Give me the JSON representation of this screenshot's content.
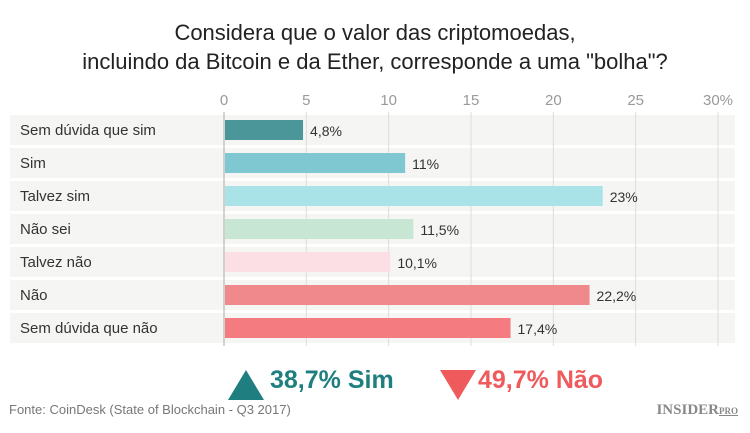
{
  "chart_data": {
    "type": "bar",
    "orientation": "horizontal",
    "title": "Considera que o valor das criptomoedas, incluindo da Bitcoin e da Ether, corresponde a uma \"bolha\"?",
    "title_lines": [
      "Considera que o valor das criptomoedas,",
      "incluindo da Bitcoin e da Ether, corresponde a uma \"bolha\"?"
    ],
    "categories": [
      "Sem dúvida que sim",
      "Sim",
      "Talvez sim",
      "Não sei",
      "Talvez não",
      "Não",
      "Sem dúvida que não"
    ],
    "values": [
      4.8,
      11,
      23,
      11.5,
      10.1,
      22.2,
      17.4
    ],
    "value_labels": [
      "4,8%",
      "11%",
      "23%",
      "11,5%",
      "10,1%",
      "22,2%",
      "17,4%"
    ],
    "colors": [
      "#4a9699",
      "#80c8d1",
      "#a9e3e8",
      "#c7e7d4",
      "#fbdfe5",
      "#f0898b",
      "#f47c80"
    ],
    "xlim": [
      0,
      30
    ],
    "ticks": [
      "0",
      "5",
      "10",
      "15",
      "20",
      "25",
      "30%"
    ],
    "tick_values": [
      0,
      5,
      10,
      15,
      20,
      25,
      30
    ],
    "grid": true
  },
  "summary": {
    "yes": {
      "text": "38,7%  Sim",
      "color": "#1f7f80"
    },
    "no": {
      "text": "49,7% Não",
      "color": "#ef5a5d"
    }
  },
  "footer": {
    "source": "Fonte: CoinDesk (State of Blockchain - Q3 2017)",
    "logo": "INSIDER",
    "logo_suffix": "PRO"
  }
}
